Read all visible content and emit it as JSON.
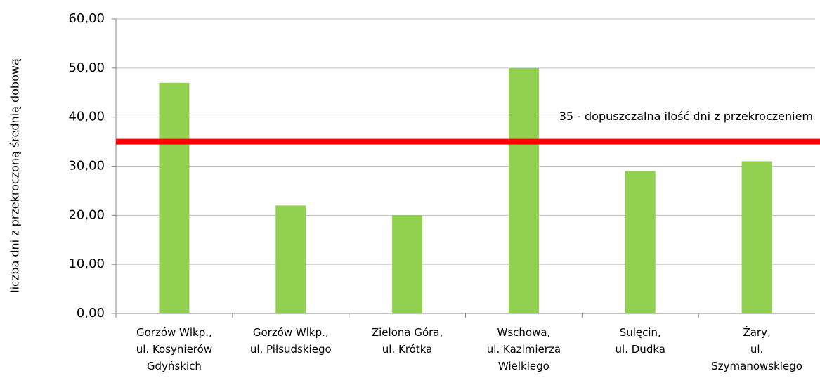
{
  "chart_data": {
    "type": "bar",
    "ylabel": "liczba dni z przekroczoną średnią dobową",
    "categories": [
      "Gorzów Wlkp.,\nul. Kosynierów\nGdyńskich",
      "Gorzów Wlkp.,\nul. Piłsudskiego",
      "Zielona Góra,\nul. Krótka",
      "Wschowa,\nul. Kazimierza\nWielkiego",
      "Sulęcin,\nul. Dudka",
      "Żary,\nul.\nSzymanowskiego"
    ],
    "values": [
      47,
      22,
      20,
      50,
      29,
      31
    ],
    "color": "#92d050",
    "ylim": [
      0,
      60
    ],
    "yticks": [
      {
        "value": 0,
        "label": "0,00"
      },
      {
        "value": 10,
        "label": "10,00"
      },
      {
        "value": 20,
        "label": "20,00"
      },
      {
        "value": 30,
        "label": "30,00"
      },
      {
        "value": 40,
        "label": "40,00"
      },
      {
        "value": 50,
        "label": "50,00"
      },
      {
        "value": 60,
        "label": "60,00"
      }
    ],
    "grid": true,
    "threshold": {
      "value": 35,
      "label": "35 - dopuszczalna ilość dni z przekroczeniem",
      "color": "#ff0000"
    }
  }
}
